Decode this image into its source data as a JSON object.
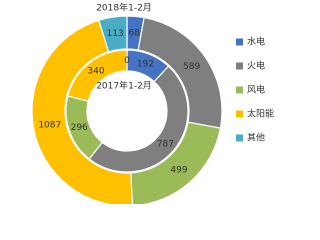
{
  "chart_data": {
    "type": "pie",
    "categories": [
      "水电",
      "火电",
      "风电",
      "太阳能",
      "其他"
    ],
    "colors": [
      "#4472c4",
      "#7f7f7f",
      "#9bbb59",
      "#ffc000",
      "#4bacc6"
    ],
    "series": [
      {
        "name": "2018年1-2月",
        "values": [
          68,
          589,
          499,
          1087,
          113
        ]
      },
      {
        "name": "2017年1-2月",
        "values": [
          192,
          787,
          296,
          340,
          0
        ]
      }
    ],
    "legend": "right"
  }
}
